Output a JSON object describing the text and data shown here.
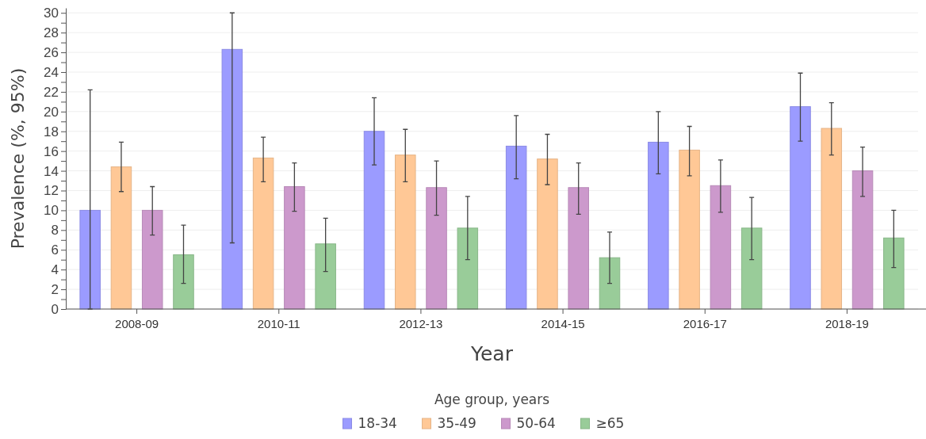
{
  "chart_data": {
    "type": "bar",
    "xlabel": "Year",
    "ylabel": "Prevalence (%, 95%)",
    "legend_title": "Age group, years",
    "legend": "bottom",
    "grid": "y",
    "categories": [
      "2008-09",
      "2010-11",
      "2012-13",
      "2014-15",
      "2016-17",
      "2018-19"
    ],
    "ylim": [
      0,
      30.5
    ],
    "yticks": [
      0,
      {
        "value": 1,
        "label": null
      },
      2,
      {
        "value": 3,
        "label": null
      },
      4,
      {
        "value": 5,
        "label": null
      },
      6,
      {
        "value": 7,
        "label": null
      },
      8,
      {
        "value": 9,
        "label": null
      },
      10,
      {
        "value": 11,
        "label": null
      },
      12,
      {
        "value": 13,
        "label": null
      },
      14,
      {
        "value": 15,
        "label": null
      },
      16,
      {
        "value": 17,
        "label": null
      },
      18,
      {
        "value": 19,
        "label": null
      },
      20,
      {
        "value": 21,
        "label": null
      },
      22,
      {
        "value": 23,
        "label": null
      },
      24,
      {
        "value": 25,
        "label": null
      },
      26,
      {
        "value": 27,
        "label": null
      },
      28,
      {
        "value": 29,
        "label": null
      },
      30
    ],
    "series": [
      {
        "name": "18-34",
        "color": "#9b9bff",
        "values": [
          10.0,
          26.3,
          18.0,
          16.5,
          16.9,
          20.5
        ],
        "errors": [
          [
            0,
            22.2
          ],
          [
            6.7,
            30.0
          ],
          [
            14.6,
            21.4
          ],
          [
            13.2,
            19.6
          ],
          [
            13.7,
            20.0
          ],
          [
            17.0,
            23.9
          ]
        ]
      },
      {
        "name": "35-49",
        "color": "#ffc896",
        "values": [
          14.4,
          15.3,
          15.6,
          15.2,
          16.1,
          18.3
        ],
        "errors": [
          [
            11.9,
            16.9
          ],
          [
            12.9,
            17.4
          ],
          [
            12.9,
            18.2
          ],
          [
            12.6,
            17.7
          ],
          [
            13.5,
            18.5
          ],
          [
            15.6,
            20.9
          ]
        ]
      },
      {
        "name": "50-64",
        "color": "#cc99cc",
        "values": [
          10.0,
          12.4,
          12.3,
          12.3,
          12.5,
          14.0
        ],
        "errors": [
          [
            7.5,
            12.4
          ],
          [
            9.9,
            14.8
          ],
          [
            9.5,
            15.0
          ],
          [
            9.6,
            14.8
          ],
          [
            9.8,
            15.1
          ],
          [
            11.4,
            16.4
          ]
        ]
      },
      {
        "name": "≥65",
        "color": "#99cc99",
        "values": [
          5.5,
          6.6,
          8.2,
          5.2,
          8.2,
          7.2
        ],
        "errors": [
          [
            2.6,
            8.5
          ],
          [
            3.8,
            9.2
          ],
          [
            5.0,
            11.4
          ],
          [
            2.6,
            7.8
          ],
          [
            5.0,
            11.3
          ],
          [
            4.2,
            10.0
          ]
        ]
      }
    ]
  }
}
